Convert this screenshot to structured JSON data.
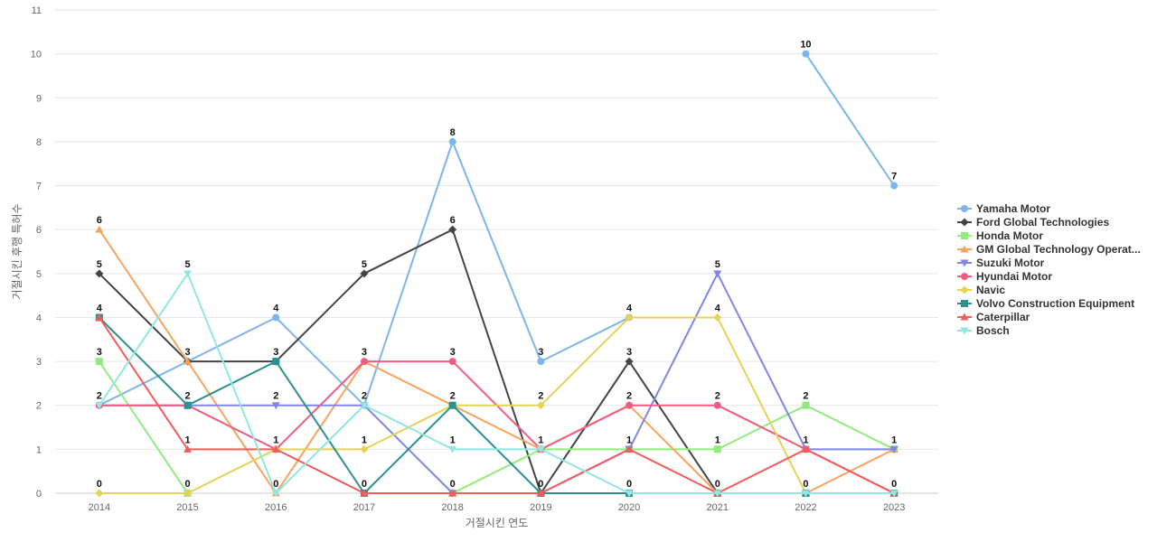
{
  "chart_data": {
    "type": "line",
    "title": "",
    "xlabel": "거절시킨 연도",
    "ylabel": "거절시킨 후행 특허수",
    "ylim": [
      0,
      11
    ],
    "yticks": [
      0,
      1,
      2,
      3,
      4,
      5,
      6,
      7,
      8,
      9,
      10,
      11
    ],
    "grid": true,
    "legend_position": "right",
    "categories": [
      "2014",
      "2015",
      "2016",
      "2017",
      "2018",
      "2019",
      "2020",
      "2021",
      "2022",
      "2023"
    ],
    "series": [
      {
        "name": "Yamaha Motor",
        "color": "#7cb5ec",
        "marker": "circle",
        "values": [
          2,
          3,
          4,
          2,
          8,
          3,
          4,
          null,
          10,
          7
        ]
      },
      {
        "name": "Ford Global Technologies",
        "color": "#434348",
        "marker": "diamond",
        "values": [
          5,
          3,
          3,
          5,
          6,
          0,
          3,
          0,
          null,
          null
        ]
      },
      {
        "name": "Honda Motor",
        "color": "#90ed7d",
        "marker": "square",
        "values": [
          3,
          0,
          null,
          null,
          0,
          1,
          1,
          1,
          2,
          1
        ]
      },
      {
        "name": "GM Global Technology Operat...",
        "color": "#f7a35c",
        "marker": "triangle",
        "values": [
          6,
          3,
          0,
          3,
          2,
          1,
          2,
          0,
          0,
          1
        ]
      },
      {
        "name": "Suzuki Motor",
        "color": "#8085e9",
        "marker": "triangle-down",
        "values": [
          2,
          2,
          2,
          2,
          0,
          0,
          1,
          5,
          1,
          1
        ]
      },
      {
        "name": "Hyundai Motor",
        "color": "#f15c80",
        "marker": "circle",
        "values": [
          2,
          2,
          1,
          3,
          3,
          1,
          2,
          2,
          1,
          0
        ]
      },
      {
        "name": "Navic",
        "color": "#e4d354",
        "marker": "diamond",
        "values": [
          0,
          0,
          1,
          1,
          2,
          2,
          4,
          4,
          0,
          null
        ]
      },
      {
        "name": "Volvo Construction Equipment",
        "color": "#2b908f",
        "marker": "square",
        "values": [
          4,
          2,
          3,
          0,
          2,
          0,
          0,
          0,
          0,
          0
        ]
      },
      {
        "name": "Caterpillar",
        "color": "#f45b5b",
        "marker": "triangle",
        "values": [
          4,
          1,
          1,
          0,
          0,
          0,
          1,
          0,
          1,
          0
        ]
      },
      {
        "name": "Bosch",
        "color": "#91e8e1",
        "marker": "triangle-down",
        "values": [
          2,
          5,
          0,
          2,
          1,
          1,
          0,
          0,
          0,
          0
        ]
      }
    ],
    "data_labels": [
      {
        "category": "2014",
        "label": "6",
        "value": 6
      },
      {
        "category": "2014",
        "label": "5",
        "value": 5
      },
      {
        "category": "2014",
        "label": "4",
        "value": 4
      },
      {
        "category": "2014",
        "label": "3",
        "value": 3
      },
      {
        "category": "2014",
        "label": "2",
        "value": 2
      },
      {
        "category": "2014",
        "label": "0",
        "value": 0
      },
      {
        "category": "2015",
        "label": "5",
        "value": 5
      },
      {
        "category": "2015",
        "label": "3",
        "value": 3
      },
      {
        "category": "2015",
        "label": "2",
        "value": 2
      },
      {
        "category": "2015",
        "label": "1",
        "value": 1
      },
      {
        "category": "2015",
        "label": "0",
        "value": 0
      },
      {
        "category": "2016",
        "label": "4",
        "value": 4
      },
      {
        "category": "2016",
        "label": "3",
        "value": 3
      },
      {
        "category": "2016",
        "label": "2",
        "value": 2
      },
      {
        "category": "2016",
        "label": "1",
        "value": 1
      },
      {
        "category": "2016",
        "label": "0",
        "value": 0
      },
      {
        "category": "2017",
        "label": "5",
        "value": 5
      },
      {
        "category": "2017",
        "label": "3",
        "value": 3
      },
      {
        "category": "2017",
        "label": "2",
        "value": 2
      },
      {
        "category": "2017",
        "label": "1",
        "value": 1
      },
      {
        "category": "2017",
        "label": "0",
        "value": 0
      },
      {
        "category": "2018",
        "label": "8",
        "value": 8
      },
      {
        "category": "2018",
        "label": "6",
        "value": 6
      },
      {
        "category": "2018",
        "label": "3",
        "value": 3
      },
      {
        "category": "2018",
        "label": "2",
        "value": 2
      },
      {
        "category": "2018",
        "label": "1",
        "value": 1
      },
      {
        "category": "2018",
        "label": "0",
        "value": 0
      },
      {
        "category": "2019",
        "label": "3",
        "value": 3
      },
      {
        "category": "2019",
        "label": "2",
        "value": 2
      },
      {
        "category": "2019",
        "label": "1",
        "value": 1
      },
      {
        "category": "2019",
        "label": "0",
        "value": 0
      },
      {
        "category": "2020",
        "label": "4",
        "value": 4
      },
      {
        "category": "2020",
        "label": "3",
        "value": 3
      },
      {
        "category": "2020",
        "label": "2",
        "value": 2
      },
      {
        "category": "2020",
        "label": "1",
        "value": 1
      },
      {
        "category": "2020",
        "label": "0",
        "value": 0
      },
      {
        "category": "2021",
        "label": "5",
        "value": 5
      },
      {
        "category": "2021",
        "label": "4",
        "value": 4
      },
      {
        "category": "2021",
        "label": "2",
        "value": 2
      },
      {
        "category": "2021",
        "label": "1",
        "value": 1
      },
      {
        "category": "2021",
        "label": "0",
        "value": 0
      },
      {
        "category": "2022",
        "label": "10",
        "value": 10
      },
      {
        "category": "2022",
        "label": "2",
        "value": 2
      },
      {
        "category": "2022",
        "label": "1",
        "value": 1
      },
      {
        "category": "2022",
        "label": "0",
        "value": 0
      },
      {
        "category": "2023",
        "label": "7",
        "value": 7
      },
      {
        "category": "2023",
        "label": "1",
        "value": 1
      },
      {
        "category": "2023",
        "label": "0",
        "value": 0
      }
    ]
  }
}
